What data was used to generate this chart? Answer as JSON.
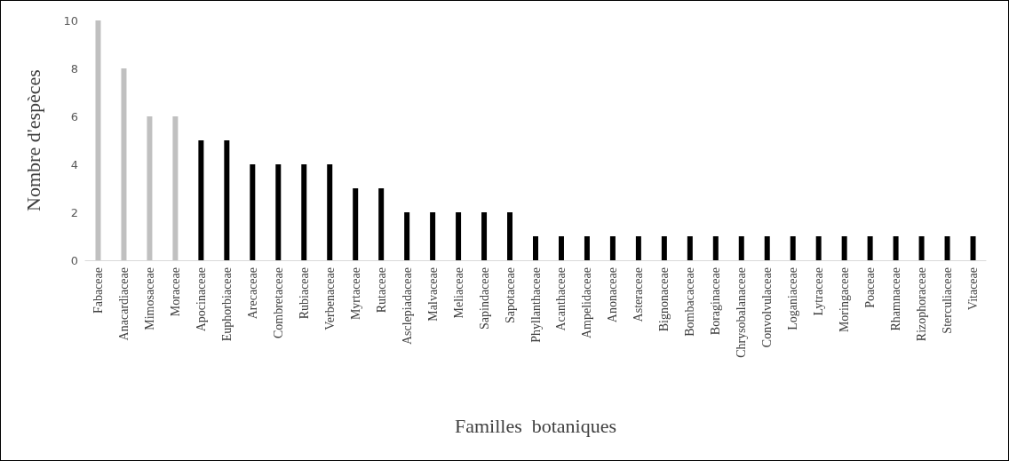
{
  "chart_data": {
    "type": "bar",
    "xlabel": "Familles  botaniques",
    "ylabel": "Nombre d'espèces",
    "categories": [
      "Fabaceae",
      "Anacardiaceae",
      "Mimosaceae",
      "Moraceae",
      "Apocinaceae",
      "Euphorbiaceae",
      "Arecaceae",
      "Combretaceae",
      "Rubiaceae",
      "Verbenaceae",
      "Myrtaceae",
      "Rutaceae",
      "Asclepiadaceae",
      "Malvaceae",
      "Meliaceae",
      "Sapindaceae",
      "Sapotaceae",
      "Phyllanthaceae",
      "Acanthaceae",
      "Ampelidaceae",
      "Anonaceae",
      "Asteraceae",
      "Bignonaceae",
      "Bombacaceae",
      "Boraginaceae",
      "Chrysobalanaceae",
      "Convolvulaceae",
      "Loganiaceae",
      "Lytraceae",
      "Moringaceae",
      "Poaceae",
      "Rhamnaceae",
      "Rizophoraceae",
      "Sterculiaceae",
      "Vitaceae"
    ],
    "values": [
      10,
      8,
      6,
      6,
      5,
      5,
      4,
      4,
      4,
      4,
      3,
      3,
      2,
      2,
      2,
      2,
      2,
      1,
      1,
      1,
      1,
      1,
      1,
      1,
      1,
      1,
      1,
      1,
      1,
      1,
      1,
      1,
      1,
      1,
      1
    ],
    "colors": [
      "#c0c0c0",
      "#c0c0c0",
      "#c0c0c0",
      "#c0c0c0",
      "#000000",
      "#000000",
      "#000000",
      "#000000",
      "#000000",
      "#000000",
      "#000000",
      "#000000",
      "#000000",
      "#000000",
      "#000000",
      "#000000",
      "#000000",
      "#000000",
      "#000000",
      "#000000",
      "#000000",
      "#000000",
      "#000000",
      "#000000",
      "#000000",
      "#000000",
      "#000000",
      "#000000",
      "#000000",
      "#000000",
      "#000000",
      "#000000",
      "#000000",
      "#000000",
      "#000000"
    ],
    "ylim": [
      0,
      10
    ],
    "yticks": [
      0,
      2,
      4,
      6,
      8,
      10
    ],
    "grid": false
  }
}
